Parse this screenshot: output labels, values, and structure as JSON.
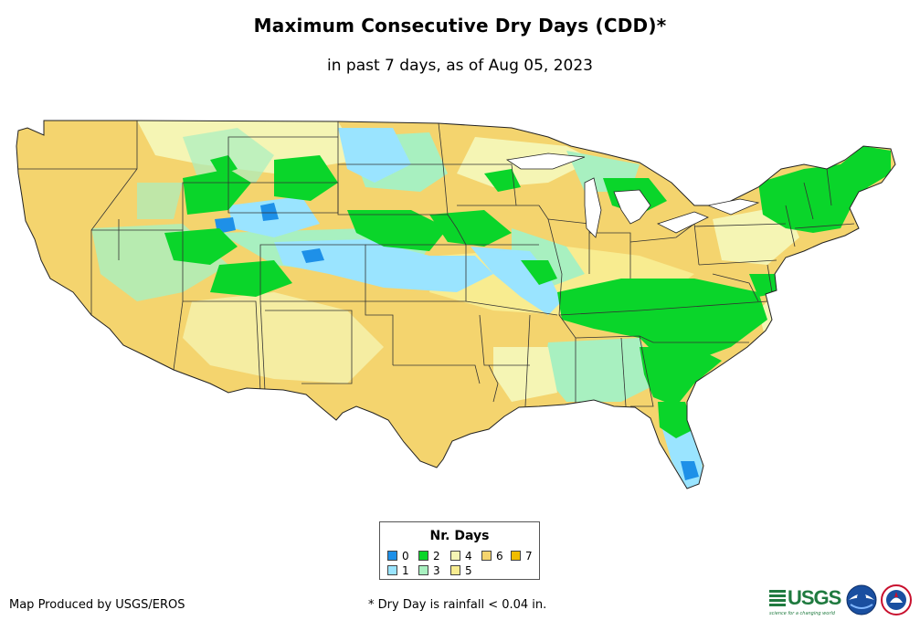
{
  "title": "Maximum Consecutive Dry Days (CDD)*",
  "subtitle": "in past 7 days, as of Aug 05, 2023",
  "legend": {
    "title": "Nr. Days",
    "items": [
      {
        "label": "0",
        "color": "#1e90e8"
      },
      {
        "label": "1",
        "color": "#9ae4ff"
      },
      {
        "label": "2",
        "color": "#0ad52a"
      },
      {
        "label": "3",
        "color": "#a8f0c0"
      },
      {
        "label": "4",
        "color": "#f5f5b4"
      },
      {
        "label": "5",
        "color": "#f8ec90"
      },
      {
        "label": "6",
        "color": "#f4d46e"
      },
      {
        "label": "7",
        "color": "#f0bc00"
      }
    ]
  },
  "footer": {
    "credit": "Map Produced by USGS/EROS",
    "footnote": "* Dry Day is rainfall < 0.04 in."
  },
  "logos": {
    "usgs": "USGS",
    "usgs_tagline": "science for a changing world",
    "noaa": "NOAA",
    "nws": "NATIONAL WEATHER SERVICE"
  }
}
